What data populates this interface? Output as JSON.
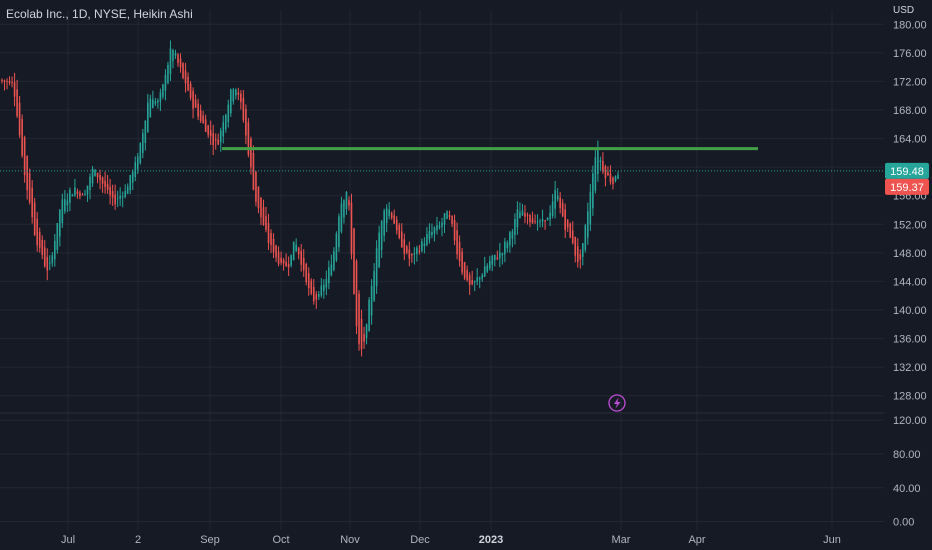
{
  "title": "Ecolab Inc., 1D, NYSE, Heikin Ashi",
  "currency": "USD",
  "colors": {
    "background": "#161a25",
    "grid": "#232734",
    "up": "#26a69a",
    "down": "#ef5350",
    "resistance": "#43a047",
    "alert": "#c04dd6"
  },
  "chart_data": {
    "type": "candlestick",
    "style": "Heikin Ashi",
    "interval": "1D",
    "panes": [
      {
        "name": "price",
        "ylim": [
          126,
          182
        ],
        "ticks": [
          "128.00",
          "132.00",
          "136.00",
          "140.00",
          "144.00",
          "148.00",
          "152.00",
          "156.00",
          "160.00",
          "164.00",
          "168.00",
          "172.00",
          "176.00",
          "180.00"
        ]
      },
      {
        "name": "lower",
        "ylim": [
          -10,
          125
        ],
        "ticks": [
          "0.00",
          "40.00",
          "80.00",
          "120.00"
        ]
      }
    ],
    "x_labels": [
      "Jul",
      "2",
      "Sep",
      "Oct",
      "Nov",
      "Dec",
      "2023",
      "Mar",
      "Apr",
      "Jun"
    ],
    "last_price": "159.48",
    "second_price": "159.37",
    "resistance_level": 162.6,
    "path": [
      {
        "i": 0,
        "p": 172
      },
      {
        "i": 4,
        "p": 172
      },
      {
        "i": 8,
        "p": 160
      },
      {
        "i": 13,
        "p": 150
      },
      {
        "i": 18,
        "p": 145
      },
      {
        "i": 23,
        "p": 155
      },
      {
        "i": 28,
        "p": 157
      },
      {
        "i": 32,
        "p": 156
      },
      {
        "i": 36,
        "p": 160
      },
      {
        "i": 39,
        "p": 158
      },
      {
        "i": 44,
        "p": 155
      },
      {
        "i": 49,
        "p": 157
      },
      {
        "i": 54,
        "p": 162
      },
      {
        "i": 58,
        "p": 170
      },
      {
        "i": 62,
        "p": 169
      },
      {
        "i": 67,
        "p": 177
      },
      {
        "i": 70,
        "p": 174
      },
      {
        "i": 75,
        "p": 169
      },
      {
        "i": 81,
        "p": 165
      },
      {
        "i": 85,
        "p": 163
      },
      {
        "i": 90,
        "p": 170
      },
      {
        "i": 92,
        "p": 172
      },
      {
        "i": 95,
        "p": 168
      },
      {
        "i": 100,
        "p": 156
      },
      {
        "i": 105,
        "p": 150
      },
      {
        "i": 109,
        "p": 147
      },
      {
        "i": 113,
        "p": 146
      },
      {
        "i": 116,
        "p": 150
      },
      {
        "i": 119,
        "p": 146
      },
      {
        "i": 123,
        "p": 141
      },
      {
        "i": 127,
        "p": 143
      },
      {
        "i": 131,
        "p": 147
      },
      {
        "i": 134,
        "p": 155
      },
      {
        "i": 137,
        "p": 157
      },
      {
        "i": 139,
        "p": 145
      },
      {
        "i": 141,
        "p": 135
      },
      {
        "i": 143,
        "p": 134
      },
      {
        "i": 146,
        "p": 142
      },
      {
        "i": 149,
        "p": 150
      },
      {
        "i": 152,
        "p": 155
      },
      {
        "i": 155,
        "p": 153
      },
      {
        "i": 158,
        "p": 149
      },
      {
        "i": 162,
        "p": 147
      },
      {
        "i": 166,
        "p": 149
      },
      {
        "i": 170,
        "p": 151
      },
      {
        "i": 174,
        "p": 152
      },
      {
        "i": 177,
        "p": 154
      },
      {
        "i": 180,
        "p": 149
      },
      {
        "i": 183,
        "p": 145
      },
      {
        "i": 186,
        "p": 143
      },
      {
        "i": 190,
        "p": 145
      },
      {
        "i": 194,
        "p": 147
      },
      {
        "i": 198,
        "p": 148
      },
      {
        "i": 201,
        "p": 150
      },
      {
        "i": 205,
        "p": 154
      },
      {
        "i": 209,
        "p": 153
      },
      {
        "i": 213,
        "p": 152
      },
      {
        "i": 217,
        "p": 153
      },
      {
        "i": 220,
        "p": 157
      },
      {
        "i": 223,
        "p": 152
      },
      {
        "i": 226,
        "p": 150
      },
      {
        "i": 229,
        "p": 146
      },
      {
        "i": 231,
        "p": 150
      },
      {
        "i": 234,
        "p": 158
      },
      {
        "i": 236,
        "p": 163
      },
      {
        "i": 239,
        "p": 159
      },
      {
        "i": 243,
        "p": 158
      },
      {
        "i": 245,
        "p": 160
      }
    ]
  },
  "alert_icon": "lightning-icon"
}
